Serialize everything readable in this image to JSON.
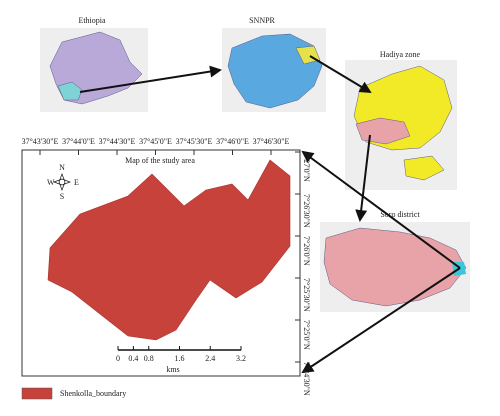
{
  "panels": {
    "ethiopia": "Ethiopia",
    "snnpr": "SNNPR",
    "hadiya": "Hadiya zone",
    "soro": "Soro district"
  },
  "main_map": {
    "title": "Map of the study area",
    "top_coords": [
      "37°43'30\"E",
      "37°44'0\"E",
      "37°44'30\"E",
      "37°45'0\"E",
      "37°45'30\"E",
      "37°46'0\"E",
      "37°46'30\"E"
    ],
    "right_coords": [
      "7°27'0\"N",
      "7°26'30\"N",
      "7°26'0\"N",
      "7°25'30\"N",
      "7°25'0\"N",
      "7°24'30\"N"
    ],
    "compass": {
      "n": "N",
      "s": "S",
      "e": "E",
      "w": "W"
    },
    "scale": {
      "ticks": [
        0,
        0.4,
        0.8,
        1.6,
        2.4,
        3.2
      ],
      "unit": "kms"
    }
  },
  "legend": {
    "label": "Shenkolla_boundary"
  }
}
